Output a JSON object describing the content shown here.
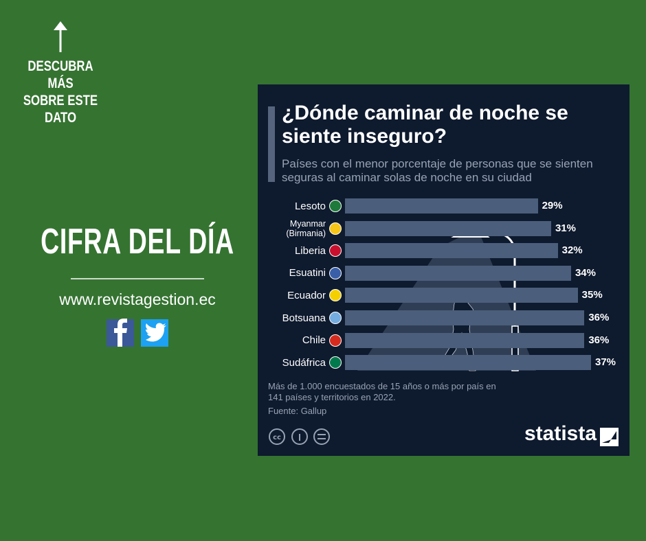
{
  "side": {
    "cta_lines": [
      "DESCUBRA MÁS",
      "SOBRE ESTE",
      "DATO"
    ],
    "headline": "CIFRA DEL DÍA",
    "url": "www.revistagestion.ec"
  },
  "chart_data": {
    "type": "bar",
    "orientation": "horizontal",
    "title": "¿Dónde caminar de noche se siente inseguro?",
    "subtitle": "Países con el menor porcentaje de personas que se sienten seguras al caminar solas de noche en su ciudad",
    "categories": [
      "Lesoto",
      "Myanmar (Birmania)",
      "Liberia",
      "Esuatini",
      "Ecuador",
      "Botsuana",
      "Chile",
      "Sudáfrica"
    ],
    "values": [
      29,
      31,
      32,
      34,
      35,
      36,
      36,
      37
    ],
    "value_labels": [
      "29%",
      "31%",
      "32%",
      "34%",
      "35%",
      "36%",
      "36%",
      "37%"
    ],
    "color": "#4b5e7b",
    "note": "Más de 1.000 encuestados de 15 años o más por país en 141 países y territorios en 2022.",
    "source": "Fuente: Gallup",
    "brand": "statista"
  }
}
